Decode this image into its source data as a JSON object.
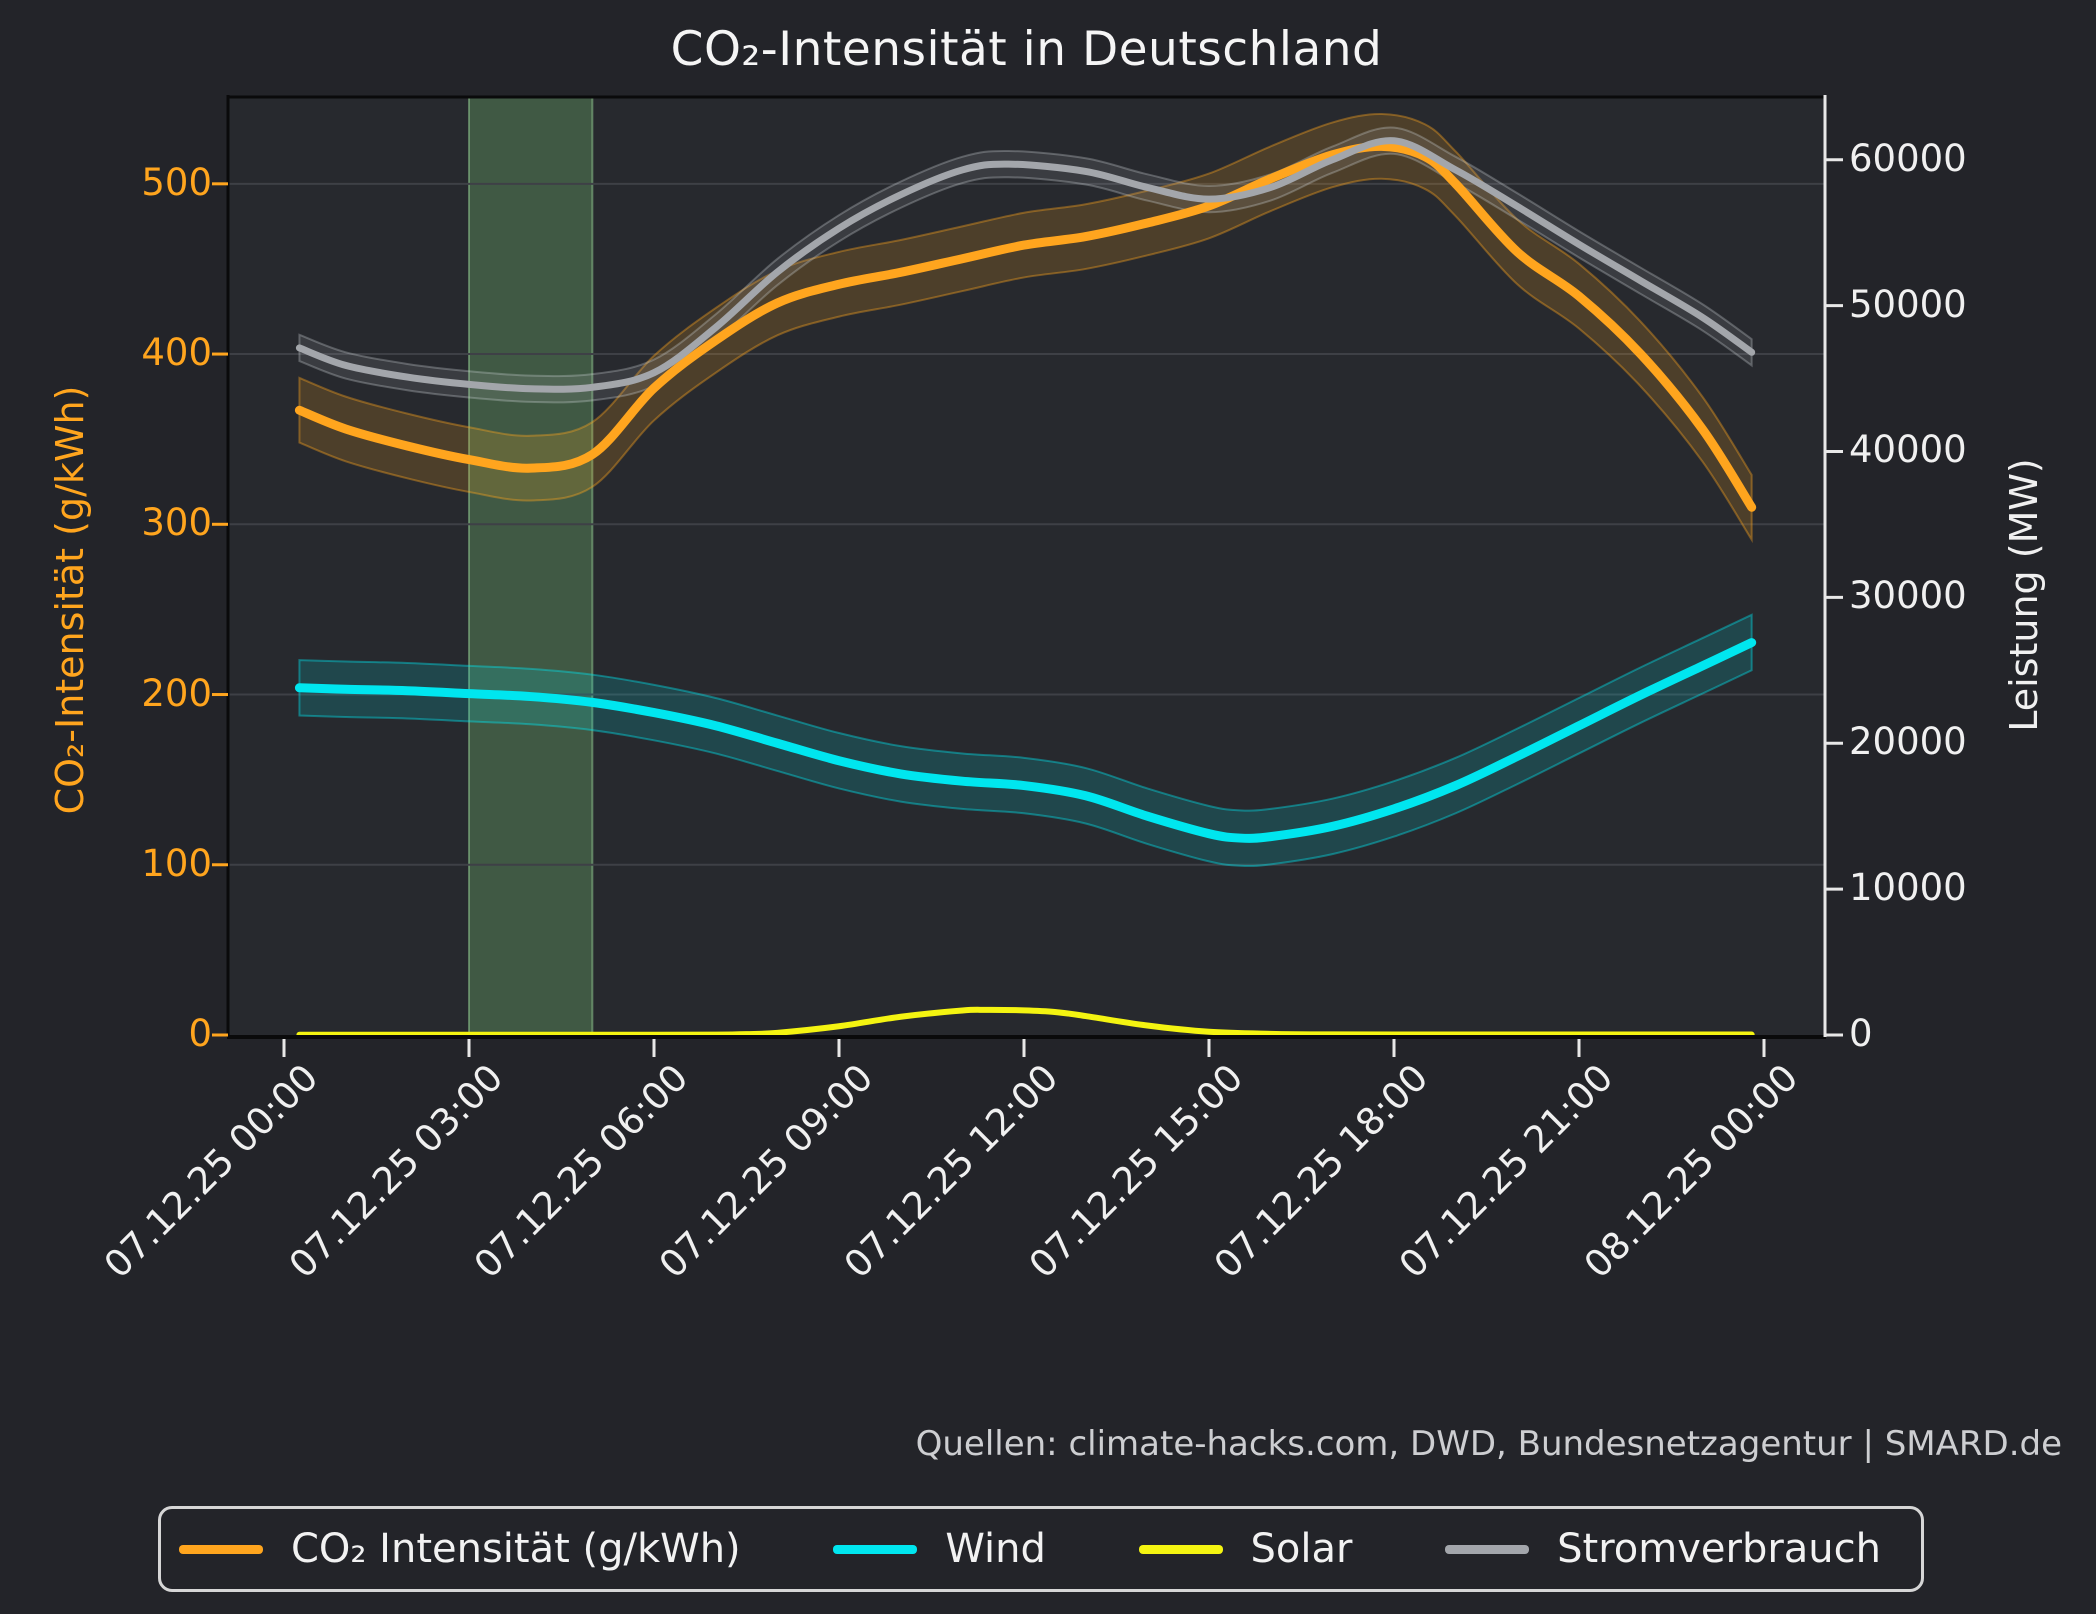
{
  "title": "CO₂-Intensität in Deutschland",
  "source_note": "Quellen: climate-hacks.com, DWD, Bundesnetzagentur | SMARD.de",
  "colors": {
    "figure_bg": "#232429",
    "axes_bg": "#27292e",
    "grid": "#3e4046",
    "spine_dark": "#0a0a0b",
    "spine_right": "#e8e8e8",
    "left_axis_accent": "#ffa51e",
    "right_axis_text": "#f0f0f0",
    "highlight_fill": "rgba(100,157,99,0.42)",
    "highlight_edge": "rgba(140,195,140,0.55)"
  },
  "chart_data": {
    "type": "line",
    "title": "CO₂-Intensität in Deutschland",
    "x_tick_labels": [
      "07.12.25 00:00",
      "07.12.25 03:00",
      "07.12.25 06:00",
      "07.12.25 09:00",
      "07.12.25 12:00",
      "07.12.25 15:00",
      "07.12.25 18:00",
      "07.12.25 21:00",
      "08.12.25 00:00"
    ],
    "x_tick_hours": [
      0,
      3,
      6,
      9,
      12,
      15,
      18,
      21,
      24
    ],
    "x_range_hours": [
      0,
      24
    ],
    "grid": "horizontal-only",
    "legend_position": "bottom",
    "left_axis": {
      "label": "CO₂-Intensität (g/kWh)",
      "ticks": [
        0,
        100,
        200,
        300,
        400,
        500
      ],
      "range": [
        0,
        551
      ]
    },
    "right_axis": {
      "label": "Leistung (MW)",
      "ticks": [
        0,
        10000,
        20000,
        30000,
        40000,
        50000,
        60000
      ],
      "range": [
        0,
        64300
      ]
    },
    "highlight_region": {
      "name": "gruenes-zeitfenster",
      "from_hour": 3,
      "to_hour": 5,
      "from": "07.12.25 03:00",
      "to": "07.12.25 05:00"
    },
    "series": [
      {
        "name": "co2",
        "label": "CO₂ Intensität (g/kWh)",
        "axis": "left",
        "color": "#ffa51e",
        "band_halfwidth": 19,
        "band_fill": "rgba(255,165,30,0.18)",
        "band_edge": "rgba(255,165,30,0.38)",
        "line_width": 9,
        "t": [
          0.25,
          1,
          2,
          3,
          4,
          5,
          6,
          7,
          8,
          9,
          10,
          11,
          12,
          13,
          14,
          15,
          16,
          17,
          17.8,
          18.5,
          19,
          20,
          21,
          22,
          23,
          23.8
        ],
        "v": [
          367,
          356,
          346,
          338,
          333,
          341,
          380,
          408,
          430,
          441,
          448,
          456,
          464,
          469,
          477,
          487,
          503,
          517,
          522,
          516,
          500,
          460,
          434,
          400,
          356,
          310
        ]
      },
      {
        "name": "wind",
        "label": "Wind",
        "axis": "right",
        "color": "#00e6ef",
        "band_halfwidth": 1900,
        "band_fill": "rgba(0,230,239,0.16)",
        "band_edge": "rgba(0,230,239,0.40)",
        "line_width": 9,
        "t": [
          0.25,
          1,
          2,
          3,
          4,
          5,
          6,
          7,
          8,
          9,
          10,
          11,
          12,
          13,
          14,
          15,
          15.5,
          16,
          17,
          18,
          19,
          20,
          21,
          22,
          23,
          23.8
        ],
        "v": [
          23800,
          23700,
          23600,
          23400,
          23200,
          22800,
          22100,
          21200,
          20000,
          18800,
          17900,
          17400,
          17100,
          16400,
          15000,
          13800,
          13500,
          13600,
          14300,
          15500,
          17100,
          19100,
          21200,
          23300,
          25300,
          26900
        ]
      },
      {
        "name": "solar",
        "label": "Solar",
        "axis": "right",
        "color": "#f4f411",
        "band_halfwidth": 0,
        "band_fill": "rgba(244,244,17,0.15)",
        "band_edge": "rgba(244,244,17,0.3)",
        "line_width": 6,
        "t": [
          0.25,
          2,
          4,
          6,
          7,
          7.5,
          8,
          9,
          10,
          11,
          11.4,
          12,
          12.5,
          13,
          14,
          15,
          16,
          17,
          19,
          21,
          23,
          23.8
        ],
        "v": [
          20,
          20,
          20,
          20,
          25,
          60,
          150,
          600,
          1250,
          1680,
          1720,
          1690,
          1580,
          1300,
          650,
          220,
          80,
          40,
          30,
          30,
          30,
          30
        ]
      },
      {
        "name": "stromverbrauch",
        "label": "Stromverbrauch",
        "axis": "right",
        "color": "#a3a6ab",
        "band_halfwidth": 900,
        "band_fill": "rgba(175,180,186,0.14)",
        "band_edge": "rgba(210,215,220,0.30)",
        "line_width": 7,
        "t": [
          0.25,
          1,
          2,
          3,
          4,
          5,
          6,
          7,
          8,
          9,
          10,
          11,
          11.75,
          13,
          14,
          15,
          16,
          17,
          18,
          19,
          20,
          21,
          22,
          23,
          23.8
        ],
        "v": [
          47100,
          45900,
          45100,
          44600,
          44300,
          44400,
          45400,
          48500,
          52300,
          55300,
          57600,
          59300,
          59700,
          59200,
          58100,
          57300,
          58100,
          60000,
          61300,
          59300,
          56800,
          54200,
          51700,
          49200,
          46800
        ]
      }
    ]
  }
}
